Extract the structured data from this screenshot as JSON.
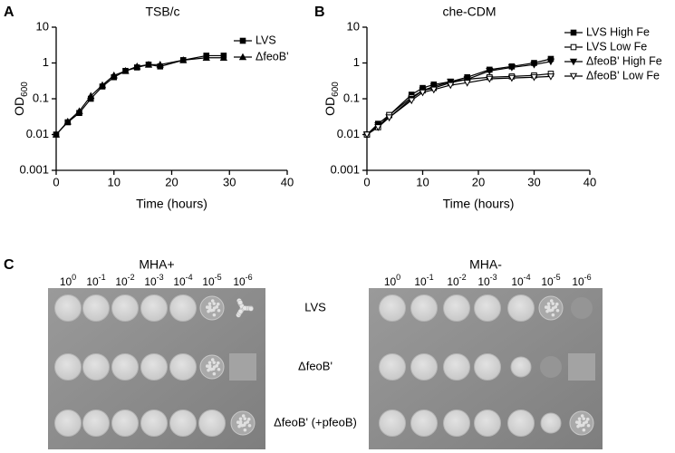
{
  "chart_data": [
    {
      "type": "line",
      "panel": "A",
      "title": "TSB/c",
      "x_label": "Time (hours)",
      "y_label": "OD",
      "y_label_sub": "600",
      "log_y": true,
      "xlim": [
        0,
        40
      ],
      "xticks": [
        0,
        10,
        20,
        30,
        40
      ],
      "ylim": [
        0.001,
        10
      ],
      "yticks": [
        0.001,
        0.01,
        0.1,
        1,
        10
      ],
      "x": [
        0,
        2,
        4,
        6,
        8,
        10,
        12,
        14,
        16,
        18,
        22,
        26,
        29
      ],
      "series": [
        {
          "name": "LVS",
          "color": "#000000",
          "marker": "square",
          "filled": true,
          "values": [
            0.01,
            0.022,
            0.04,
            0.1,
            0.22,
            0.4,
            0.6,
            0.75,
            0.9,
            0.8,
            1.2,
            1.6,
            1.6
          ]
        },
        {
          "name": "ΔfeoB'",
          "color": "#000000",
          "marker": "triangle",
          "filled": true,
          "values": [
            0.01,
            0.023,
            0.045,
            0.12,
            0.24,
            0.45,
            0.6,
            0.8,
            0.9,
            0.9,
            1.2,
            1.4,
            1.4
          ]
        }
      ]
    },
    {
      "type": "line",
      "panel": "B",
      "title": "che-CDM",
      "x_label": "Time (hours)",
      "y_label": "OD",
      "y_label_sub": "600",
      "log_y": true,
      "xlim": [
        0,
        40
      ],
      "xticks": [
        0,
        10,
        20,
        30,
        40
      ],
      "ylim": [
        0.001,
        10
      ],
      "yticks": [
        0.001,
        0.01,
        0.1,
        1,
        10
      ],
      "x": [
        0,
        2,
        4,
        8,
        10,
        12,
        15,
        18,
        22,
        26,
        30,
        33
      ],
      "series": [
        {
          "name": "LVS High Fe",
          "color": "#000000",
          "marker": "square",
          "filled": true,
          "values": [
            0.01,
            0.02,
            0.035,
            0.13,
            0.2,
            0.25,
            0.3,
            0.4,
            0.65,
            0.8,
            1.0,
            1.3
          ]
        },
        {
          "name": "LVS Low Fe",
          "color": "#000000",
          "marker": "square",
          "filled": false,
          "values": [
            0.01,
            0.016,
            0.035,
            0.11,
            0.17,
            0.2,
            0.28,
            0.35,
            0.4,
            0.42,
            0.45,
            0.5
          ]
        },
        {
          "name": "ΔfeoB' High Fe",
          "color": "#000000",
          "marker": "down-triangle",
          "filled": true,
          "values": [
            0.01,
            0.018,
            0.03,
            0.1,
            0.17,
            0.22,
            0.3,
            0.35,
            0.6,
            0.75,
            0.9,
            1.1
          ]
        },
        {
          "name": "ΔfeoB' Low Fe",
          "color": "#000000",
          "marker": "down-triangle",
          "filled": false,
          "values": [
            0.01,
            0.016,
            0.03,
            0.09,
            0.15,
            0.18,
            0.24,
            0.28,
            0.36,
            0.38,
            0.4,
            0.42
          ]
        }
      ]
    }
  ],
  "panel_c": {
    "panel": "C",
    "plates": [
      {
        "title": "MHA+"
      },
      {
        "title": "MHA-"
      }
    ],
    "dilutions": [
      {
        "base": "10",
        "exp": "0"
      },
      {
        "base": "10",
        "exp": "-1"
      },
      {
        "base": "10",
        "exp": "-2"
      },
      {
        "base": "10",
        "exp": "-3"
      },
      {
        "base": "10",
        "exp": "-4"
      },
      {
        "base": "10",
        "exp": "-5"
      },
      {
        "base": "10",
        "exp": "-6"
      }
    ],
    "rows": [
      "LVS",
      "ΔfeoB'",
      "ΔfeoB' (+pfeoB)"
    ]
  }
}
